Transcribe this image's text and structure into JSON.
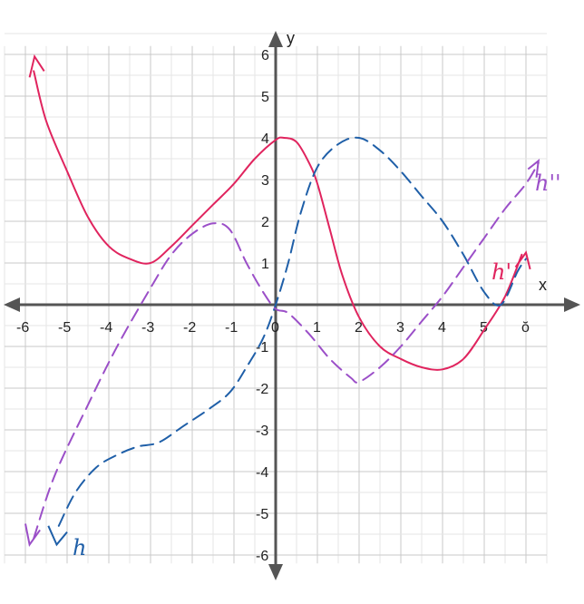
{
  "chart_data": {
    "type": "line",
    "xlabel": "x",
    "ylabel": "y",
    "xlim": [
      -6,
      6
    ],
    "ylim": [
      -6,
      6
    ],
    "grid": true,
    "x_ticks": [
      "-6",
      "-5",
      "-4",
      "-3",
      "-2",
      "-1",
      "0",
      "1",
      "2",
      "3",
      "4",
      "5",
      "ŏ"
    ],
    "y_ticks": [
      "6",
      "5",
      "4",
      "3",
      "2",
      "1",
      "-1",
      "-2",
      "-3",
      "-4",
      "-5",
      "-6"
    ],
    "series": [
      {
        "name": "h'",
        "color": "#e0245e",
        "style": "solid",
        "points": [
          [
            -5.8,
            5.6
          ],
          [
            -5.5,
            4.4
          ],
          [
            -5,
            3.2
          ],
          [
            -4.5,
            2.1
          ],
          [
            -4,
            1.4
          ],
          [
            -3.5,
            1.1
          ],
          [
            -3,
            1.0
          ],
          [
            -2.5,
            1.4
          ],
          [
            -2,
            1.9
          ],
          [
            -1.5,
            2.4
          ],
          [
            -1,
            2.9
          ],
          [
            -0.5,
            3.5
          ],
          [
            0,
            3.95
          ],
          [
            0.2,
            4.0
          ],
          [
            0.5,
            3.9
          ],
          [
            0.8,
            3.4
          ],
          [
            1.0,
            2.9
          ],
          [
            1.3,
            1.8
          ],
          [
            1.6,
            0.7
          ],
          [
            2.0,
            -0.3
          ],
          [
            2.5,
            -1.0
          ],
          [
            3.0,
            -1.3
          ],
          [
            3.5,
            -1.5
          ],
          [
            4.0,
            -1.55
          ],
          [
            4.5,
            -1.3
          ],
          [
            5.0,
            -0.6
          ],
          [
            5.5,
            0.2
          ],
          [
            5.9,
            1.2
          ]
        ]
      },
      {
        "name": "h",
        "color": "#1f5fa8",
        "style": "dashed",
        "points": [
          [
            -5.2,
            -5.3
          ],
          [
            -4.8,
            -4.5
          ],
          [
            -4.3,
            -3.9
          ],
          [
            -3.8,
            -3.6
          ],
          [
            -3.3,
            -3.4
          ],
          [
            -2.8,
            -3.3
          ],
          [
            -2.2,
            -2.9
          ],
          [
            -1.6,
            -2.5
          ],
          [
            -1.1,
            -2.1
          ],
          [
            -0.7,
            -1.5
          ],
          [
            -0.3,
            -0.8
          ],
          [
            0,
            0
          ],
          [
            0.3,
            1.0
          ],
          [
            0.6,
            2.2
          ],
          [
            1.0,
            3.3
          ],
          [
            1.5,
            3.85
          ],
          [
            2.0,
            4.0
          ],
          [
            2.5,
            3.7
          ],
          [
            3.0,
            3.2
          ],
          [
            3.5,
            2.6
          ],
          [
            4.0,
            2.0
          ],
          [
            4.5,
            1.2
          ],
          [
            5.0,
            0.3
          ],
          [
            5.4,
            0.0
          ],
          [
            5.8,
            0.8
          ],
          [
            6.0,
            1.1
          ]
        ]
      },
      {
        "name": "h''",
        "color": "#9b4fc8",
        "style": "dashed",
        "points": [
          [
            -5.8,
            -5.6
          ],
          [
            -5.3,
            -4.1
          ],
          [
            -4.5,
            -2.4
          ],
          [
            -3.8,
            -1.0
          ],
          [
            -3.0,
            0.4
          ],
          [
            -2.5,
            1.2
          ],
          [
            -2.0,
            1.7
          ],
          [
            -1.5,
            1.95
          ],
          [
            -1.1,
            1.8
          ],
          [
            -0.7,
            1.0
          ],
          [
            -0.3,
            0.3
          ],
          [
            0,
            -0.1
          ],
          [
            0.3,
            -0.2
          ],
          [
            0.8,
            -0.7
          ],
          [
            1.3,
            -1.3
          ],
          [
            1.8,
            -1.75
          ],
          [
            2.0,
            -1.85
          ],
          [
            2.5,
            -1.5
          ],
          [
            3.0,
            -1.0
          ],
          [
            3.5,
            -0.4
          ],
          [
            4.0,
            0.2
          ],
          [
            4.5,
            0.9
          ],
          [
            5.0,
            1.6
          ],
          [
            5.5,
            2.3
          ],
          [
            6.0,
            2.9
          ],
          [
            6.3,
            3.4
          ]
        ]
      }
    ]
  }
}
